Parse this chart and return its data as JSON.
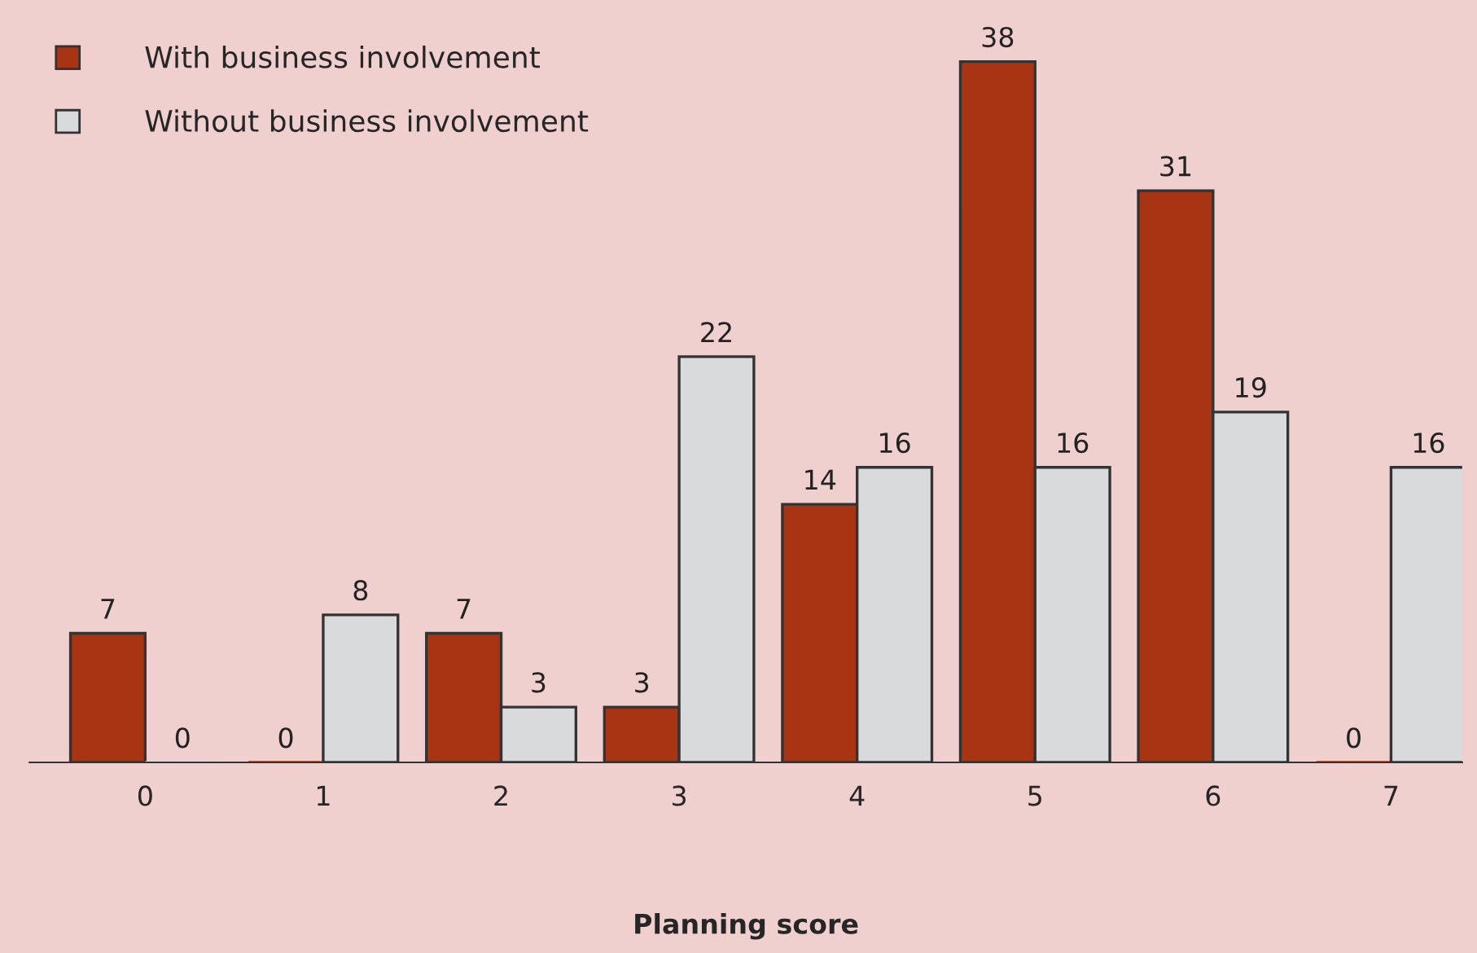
{
  "chart_data": {
    "type": "bar",
    "xlabel": "Planning score",
    "categories": [
      "0",
      "1",
      "2",
      "3",
      "4",
      "5",
      "6",
      "7"
    ],
    "series": [
      {
        "name": "With business involvement",
        "color": "#a83414",
        "values": [
          7,
          0,
          7,
          3,
          14,
          38,
          31,
          0
        ]
      },
      {
        "name": "Without business involvement",
        "color": "#d9dadc",
        "values": [
          0,
          8,
          3,
          22,
          16,
          16,
          19,
          16
        ]
      }
    ],
    "data_labels": true,
    "legend": "top left",
    "grid": false
  }
}
